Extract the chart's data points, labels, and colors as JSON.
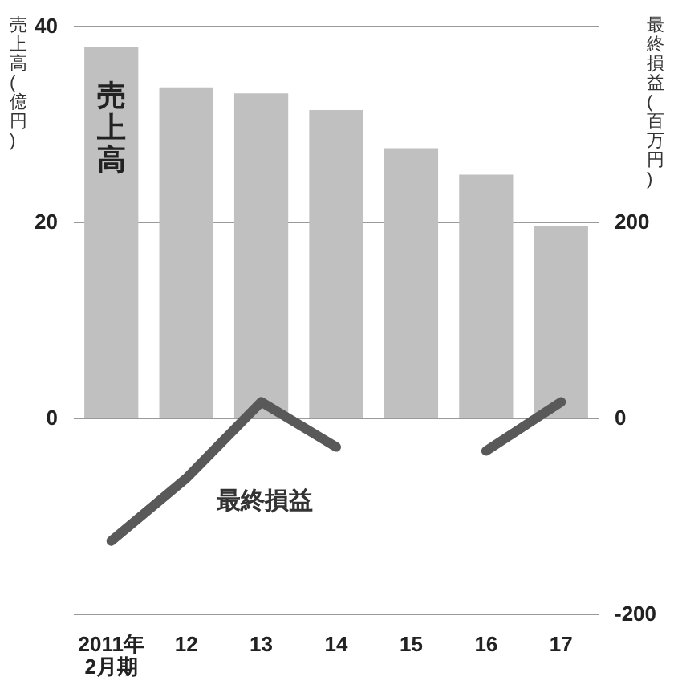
{
  "chart_data": {
    "type": "bar",
    "ylabel": "売上高(億円)",
    "y2label": "最終損益(百万円)",
    "categories": [
      "2011年\n2月期",
      "12",
      "13",
      "14",
      "15",
      "16",
      "17"
    ],
    "series": [
      {
        "name": "売上高",
        "color": "#c0c0c0",
        "values": [
          37.8,
          33.7,
          33.1,
          31.4,
          27.5,
          24.8,
          19.5
        ]
      },
      {
        "name": "最終損益",
        "type": "line",
        "axis": "y2",
        "color": "#595959",
        "values": [
          -126,
          -62,
          16,
          -30,
          null,
          -34,
          16
        ]
      }
    ],
    "ylim": [
      -20,
      40
    ],
    "yticks": [
      {
        "value": -20,
        "label": null
      },
      0,
      20,
      40
    ],
    "y2lim": [
      -200,
      400
    ],
    "y2ticks": [
      -200,
      0,
      200
    ],
    "grid": "y",
    "marker": "none",
    "line_style": "solid"
  }
}
